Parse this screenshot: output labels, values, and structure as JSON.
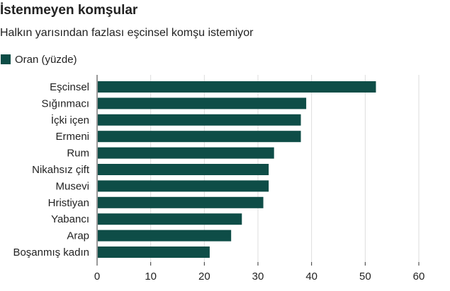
{
  "header": {
    "title": "İstenmeyen komşular",
    "subtitle": "Halkın yarısından fazlası eşcinsel komşu istemiyor"
  },
  "colors": {
    "bar": "#0e4d47",
    "grid": "#dddddd",
    "axis": "#333333"
  },
  "chart_data": {
    "type": "bar",
    "orientation": "horizontal",
    "title": "İstenmeyen komşular",
    "subtitle": "Halkın yarısından fazlası eşcinsel komşu istemiyor",
    "categories": [
      "Eşcinsel",
      "Sığınmacı",
      "İçki içen",
      "Ermeni",
      "Rum",
      "Nikahsız çift",
      "Musevi",
      "Hristiyan",
      "Yabancı",
      "Arap",
      "Boşanmış kadın"
    ],
    "series": [
      {
        "name": "Oran (yüzde)",
        "values": [
          52,
          39,
          38,
          38,
          33,
          32,
          32,
          31,
          27,
          25,
          21
        ]
      }
    ],
    "xlim": [
      0,
      60
    ],
    "xticks": [
      0,
      10,
      20,
      30,
      40,
      50,
      60
    ],
    "grid": true,
    "legend": "top-left"
  }
}
